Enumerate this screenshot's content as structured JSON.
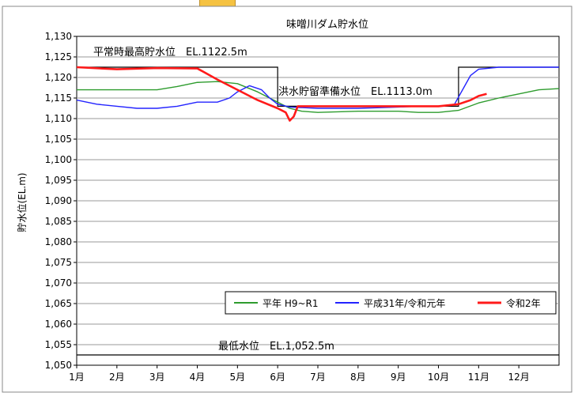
{
  "chart_data": {
    "type": "line",
    "title": "味噌川ダム貯水位",
    "ylabel": "貯水位(EL.m)",
    "xlabel": "",
    "ylim": [
      1050,
      1130
    ],
    "y_ticks": [
      "1,050",
      "1,055",
      "1,060",
      "1,065",
      "1,070",
      "1,075",
      "1,080",
      "1,085",
      "1,090",
      "1,095",
      "1,100",
      "1,105",
      "1,110",
      "1,115",
      "1,120",
      "1,125",
      "1,130"
    ],
    "x_ticks": [
      "1月",
      "2月",
      "3月",
      "4月",
      "5月",
      "6月",
      "7月",
      "8月",
      "9月",
      "10月",
      "11月",
      "12月"
    ],
    "grid": true,
    "legend_position": "bottom-right",
    "annotations": {
      "normal_max": "平常時最高貯水位　EL.1122.5m",
      "flood_prep": "洪水貯留準備水位　EL.1113.0m",
      "min_level": "最低水位　EL.1,052.5m"
    },
    "reference_lines": [
      {
        "name": "normal_max",
        "value": 1122.5,
        "from_month": 1.0,
        "to_month": 6.0
      },
      {
        "name": "flood_prep",
        "value": 1113.0,
        "from_month": 6.0,
        "to_month": 10.5
      },
      {
        "name": "normal_max_2",
        "value": 1122.5,
        "from_month": 10.5,
        "to_month": 13.0
      },
      {
        "name": "min_level",
        "value": 1052.5,
        "from_month": 1.0,
        "to_month": 13.0
      }
    ],
    "series": [
      {
        "name": "平年 H9~R1",
        "color": "#2e9c2e",
        "x": [
          1.0,
          2.0,
          3.0,
          3.5,
          4.0,
          4.5,
          5.0,
          5.5,
          6.0,
          6.3,
          6.6,
          7.0,
          8.0,
          9.0,
          9.5,
          10.0,
          10.5,
          11.0,
          11.5,
          12.0,
          12.5,
          13.0
        ],
        "y": [
          1117.0,
          1117.0,
          1117.0,
          1117.8,
          1118.8,
          1119.0,
          1118.5,
          1116.5,
          1114.0,
          1112.5,
          1111.8,
          1111.5,
          1111.8,
          1111.8,
          1111.5,
          1111.5,
          1112.0,
          1113.8,
          1115.0,
          1116.0,
          1117.0,
          1117.3
        ]
      },
      {
        "name": "平成31年/令和元年",
        "color": "#2323ff",
        "x": [
          1.0,
          1.5,
          2.0,
          2.5,
          3.0,
          3.5,
          4.0,
          4.5,
          4.8,
          5.0,
          5.3,
          5.6,
          5.8,
          6.0,
          6.3,
          7.0,
          8.0,
          9.0,
          9.5,
          10.0,
          10.4,
          10.6,
          10.8,
          11.0,
          11.5,
          12.0,
          13.0
        ],
        "y": [
          1114.5,
          1113.5,
          1113.0,
          1112.5,
          1112.5,
          1113.0,
          1114.0,
          1114.0,
          1115.0,
          1116.5,
          1118.0,
          1117.0,
          1115.0,
          1113.5,
          1112.8,
          1112.5,
          1112.5,
          1112.8,
          1113.0,
          1113.0,
          1113.5,
          1117.0,
          1120.5,
          1122.0,
          1122.5,
          1122.5,
          1122.5
        ]
      },
      {
        "name": "令和2年",
        "color": "#ff1a1a",
        "x": [
          1.0,
          2.0,
          3.0,
          4.0,
          4.5,
          5.0,
          5.5,
          6.0,
          6.2,
          6.3,
          6.4,
          6.5,
          7.0,
          8.0,
          9.0,
          10.0,
          10.5,
          10.8,
          11.0,
          11.2
        ],
        "y": [
          1122.5,
          1122.0,
          1122.3,
          1122.2,
          1119.5,
          1117.0,
          1114.5,
          1112.5,
          1111.5,
          1109.5,
          1110.5,
          1113.0,
          1113.0,
          1113.0,
          1113.0,
          1113.0,
          1113.5,
          1114.5,
          1115.5,
          1116.0
        ]
      }
    ]
  }
}
